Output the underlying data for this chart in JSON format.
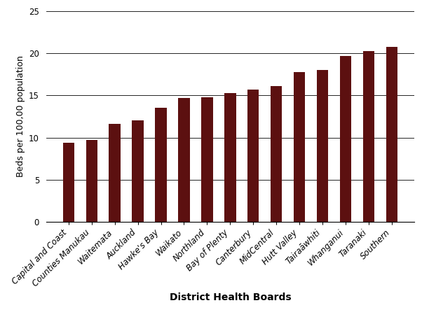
{
  "categories": [
    "Capital and Coast",
    "Counties Manukau",
    "Waitemata",
    "Auckland",
    "Hawke's Bay",
    "Waikato",
    "Northland",
    "Bay of Plenty",
    "Canterbury",
    "MidCentral",
    "Hutt Valley",
    "Tairaāwhiti",
    "Whanganui",
    "Taranaki",
    "Southern"
  ],
  "values": [
    9.4,
    9.7,
    11.6,
    12.0,
    13.5,
    14.7,
    14.8,
    15.3,
    15.7,
    16.1,
    17.8,
    18.0,
    19.7,
    20.3,
    20.8
  ],
  "bar_color": "#5C1010",
  "xlabel": "District Health Boards",
  "ylabel": "Beds per 100,00 population",
  "ylim": [
    0,
    25
  ],
  "yticks": [
    0,
    5,
    10,
    15,
    20,
    25
  ],
  "background_color": "#ffffff",
  "axis_label_fontsize": 9,
  "tick_fontsize": 8.5
}
